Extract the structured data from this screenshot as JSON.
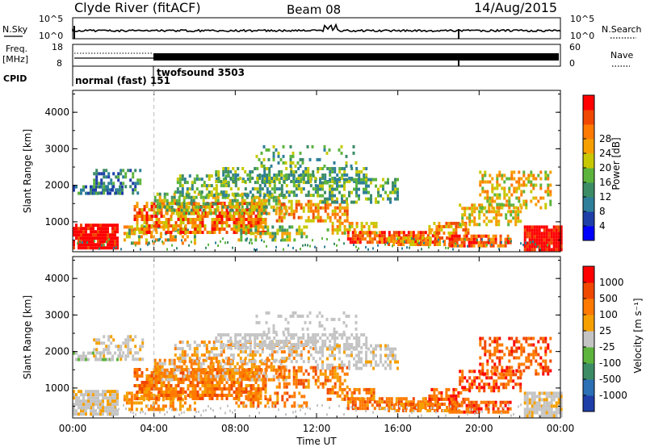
{
  "header": {
    "station": "Clyde River (fitACF)",
    "beam": "Beam 08",
    "date": "14/Aug/2015"
  },
  "top_panels": {
    "nsky_label": "N.Sky",
    "nsearch_label": "N.Search",
    "noise_tick_hi": "10^5",
    "noise_tick_lo": "10^0",
    "freq_label_1": "Freq.",
    "freq_label_2": "[MHz]",
    "freq_ticks": [
      "18",
      "8"
    ],
    "nave_label": "Nave",
    "nave_ticks": [
      "60",
      "0"
    ],
    "cpid_label": "CPID",
    "cpid_1": "normal (fast) 151",
    "cpid_2": "twofsound 3503"
  },
  "colors": {
    "power": [
      "#0000ff",
      "#1e3ea8",
      "#2e7f9a",
      "#3c8c66",
      "#5db43c",
      "#c8c800",
      "#f5a000",
      "#ff7a00",
      "#f04800",
      "#ff0000"
    ],
    "velocity": [
      "#1e3ea8",
      "#2b6fb4",
      "#3c8c66",
      "#5db43c",
      "#c4c4c4",
      "#f5a000",
      "#ff7a00",
      "#f04800",
      "#ff0000"
    ]
  },
  "chart_data": [
    {
      "type": "heatmap",
      "name": "power",
      "ylabel": "Slant Range [km]",
      "y_ticks": [
        1000,
        2000,
        3000,
        4000
      ],
      "ylim": [
        180,
        4600
      ],
      "x_ticks": [
        "00:00",
        "04:00",
        "08:00",
        "12:00",
        "16:00",
        "20:00",
        "00:00"
      ],
      "xlim_hours": [
        0,
        24
      ],
      "colorbar_label": "Power [dB]",
      "colorbar_ticks": [
        "4",
        "8",
        "12",
        "16",
        "20",
        "24",
        "28"
      ]
    },
    {
      "type": "heatmap",
      "name": "velocity",
      "ylabel": "Slant Range [km]",
      "y_ticks": [
        1000,
        2000,
        3000,
        4000
      ],
      "ylim": [
        180,
        4600
      ],
      "x_ticks": [
        "00:00",
        "04:00",
        "08:00",
        "12:00",
        "16:00",
        "20:00",
        "00:00"
      ],
      "xlim_hours": [
        0,
        24
      ],
      "xlabel": "Time UT",
      "colorbar_label": "Velocity [m s⁻¹]",
      "colorbar_ticks": [
        "1000",
        "500",
        "100",
        "25",
        "-25",
        "-100",
        "-500",
        "-1000"
      ]
    }
  ]
}
